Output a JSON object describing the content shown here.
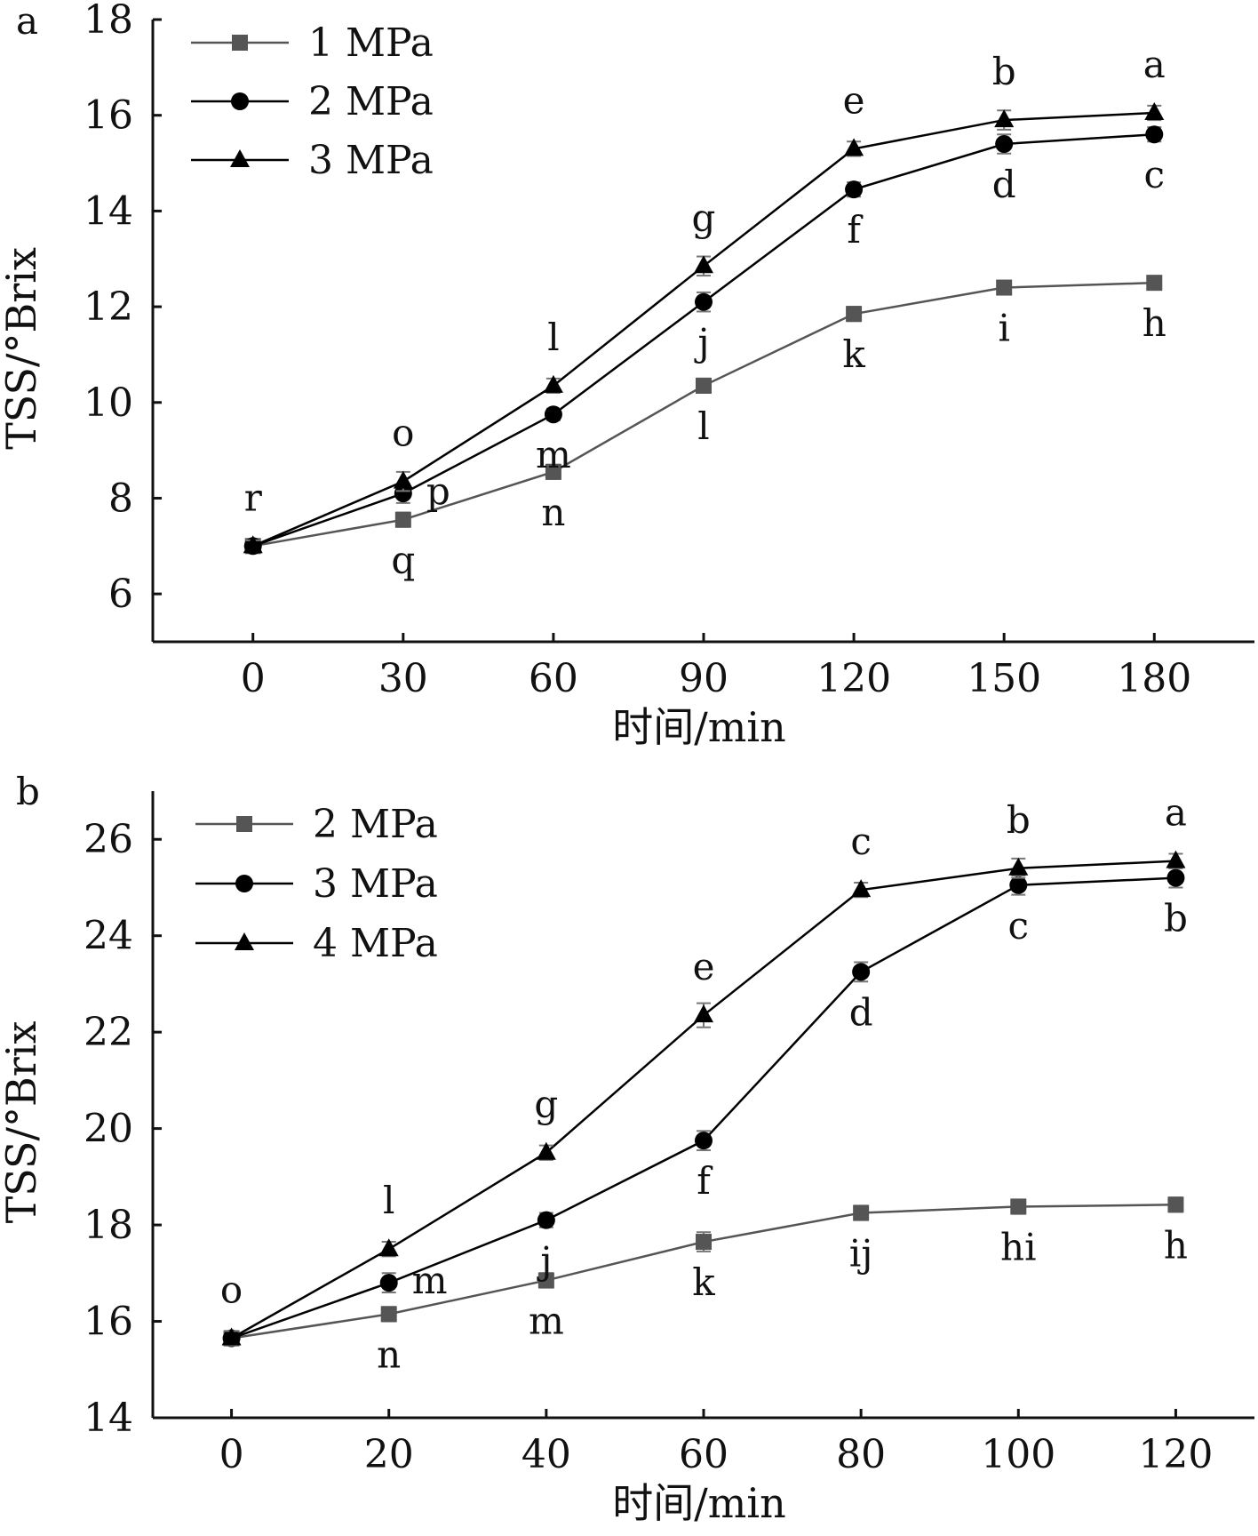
{
  "chart_data": [
    {
      "type": "line",
      "panel_label": "a",
      "xlabel": "时间/min",
      "ylabel": "TSS/°Brix",
      "x": [
        0,
        30,
        60,
        90,
        120,
        150,
        180
      ],
      "xlim": [
        -20,
        200
      ],
      "ylim": [
        5,
        18
      ],
      "yticks": [
        6,
        8,
        10,
        12,
        14,
        16,
        18
      ],
      "legend_position": "top-left",
      "grid": false,
      "series": [
        {
          "name": "1 MPa",
          "marker": "square",
          "color": "#555555",
          "values": [
            7.0,
            7.55,
            8.55,
            10.35,
            11.85,
            12.4,
            12.5
          ],
          "errors": [
            0.12,
            0.15,
            0.15,
            0.15,
            0.15,
            0.1,
            0.12
          ],
          "letters": [
            "",
            "q",
            "n",
            "l",
            "k",
            "i",
            "h"
          ]
        },
        {
          "name": "2 MPa",
          "marker": "circle",
          "color": "#000000",
          "values": [
            7.0,
            8.1,
            9.75,
            12.1,
            14.45,
            15.4,
            15.6
          ],
          "errors": [
            0.12,
            0.2,
            0.12,
            0.2,
            0.15,
            0.2,
            0.15
          ],
          "letters": [
            "",
            "p",
            "m",
            "j",
            "f",
            "d",
            "c"
          ]
        },
        {
          "name": "3 MPa",
          "marker": "triangle",
          "color": "#000000",
          "values": [
            7.0,
            8.35,
            10.35,
            12.85,
            15.3,
            15.9,
            16.05
          ],
          "errors": [
            0.12,
            0.2,
            0.15,
            0.2,
            0.15,
            0.2,
            0.15
          ],
          "letters": [
            "r",
            "o",
            "l",
            "g",
            "e",
            "b",
            "a"
          ]
        }
      ]
    },
    {
      "type": "line",
      "panel_label": "b",
      "xlabel": "时间/min",
      "ylabel": "TSS/°Brix",
      "x": [
        0,
        20,
        40,
        60,
        80,
        100,
        120
      ],
      "xlim": [
        -10,
        130
      ],
      "ylim": [
        14,
        27
      ],
      "yticks": [
        14,
        16,
        18,
        20,
        22,
        24,
        26
      ],
      "legend_position": "top-left",
      "grid": false,
      "series": [
        {
          "name": "2 MPa",
          "marker": "square",
          "color": "#555555",
          "values": [
            15.65,
            16.15,
            16.85,
            17.65,
            18.25,
            18.38,
            18.42
          ],
          "errors": [
            0.15,
            0.15,
            0.15,
            0.2,
            0.15,
            0.15,
            0.15
          ],
          "letters": [
            "",
            "n",
            "m",
            "k",
            "ij",
            "hi",
            "h"
          ]
        },
        {
          "name": "3 MPa",
          "marker": "circle",
          "color": "#000000",
          "values": [
            15.65,
            16.8,
            18.1,
            19.75,
            23.25,
            25.05,
            25.2
          ],
          "errors": [
            0.15,
            0.2,
            0.15,
            0.2,
            0.2,
            0.2,
            0.2
          ],
          "letters": [
            "",
            "m",
            "j",
            "f",
            "d",
            "c",
            "b"
          ]
        },
        {
          "name": "4 MPa",
          "marker": "triangle",
          "color": "#000000",
          "values": [
            15.65,
            17.5,
            19.5,
            22.35,
            24.95,
            25.4,
            25.55
          ],
          "errors": [
            0.15,
            0.15,
            0.15,
            0.25,
            0.15,
            0.2,
            0.15
          ],
          "letters": [
            "o",
            "l",
            "g",
            "e",
            "c",
            "b",
            "a"
          ]
        }
      ]
    }
  ]
}
